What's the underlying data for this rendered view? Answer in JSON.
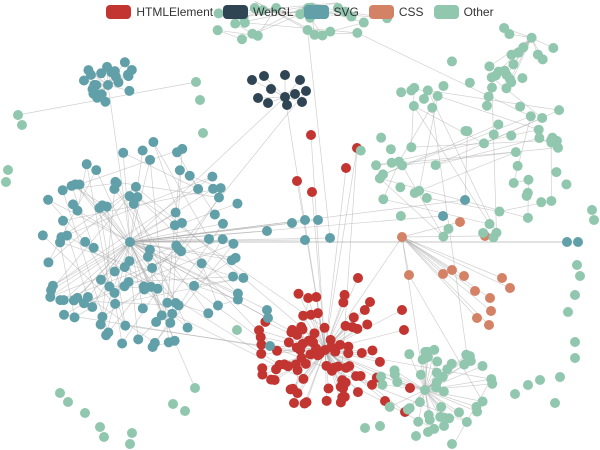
{
  "legend": {
    "items": [
      {
        "key": "htmlelement",
        "label": "HTMLElement",
        "color": "#c23531"
      },
      {
        "key": "webgl",
        "label": "WebGL",
        "color": "#2f4554"
      },
      {
        "key": "svg",
        "label": "SVG",
        "color": "#61a0a8"
      },
      {
        "key": "css",
        "label": "CSS",
        "color": "#d48265"
      },
      {
        "key": "other",
        "label": "Other",
        "color": "#91c7ae"
      }
    ]
  },
  "graph": {
    "type": "force-directed network",
    "categories": [
      "HTMLElement",
      "WebGL",
      "SVG",
      "CSS",
      "Other"
    ],
    "edge_color": "#aaaaaa"
  }
}
